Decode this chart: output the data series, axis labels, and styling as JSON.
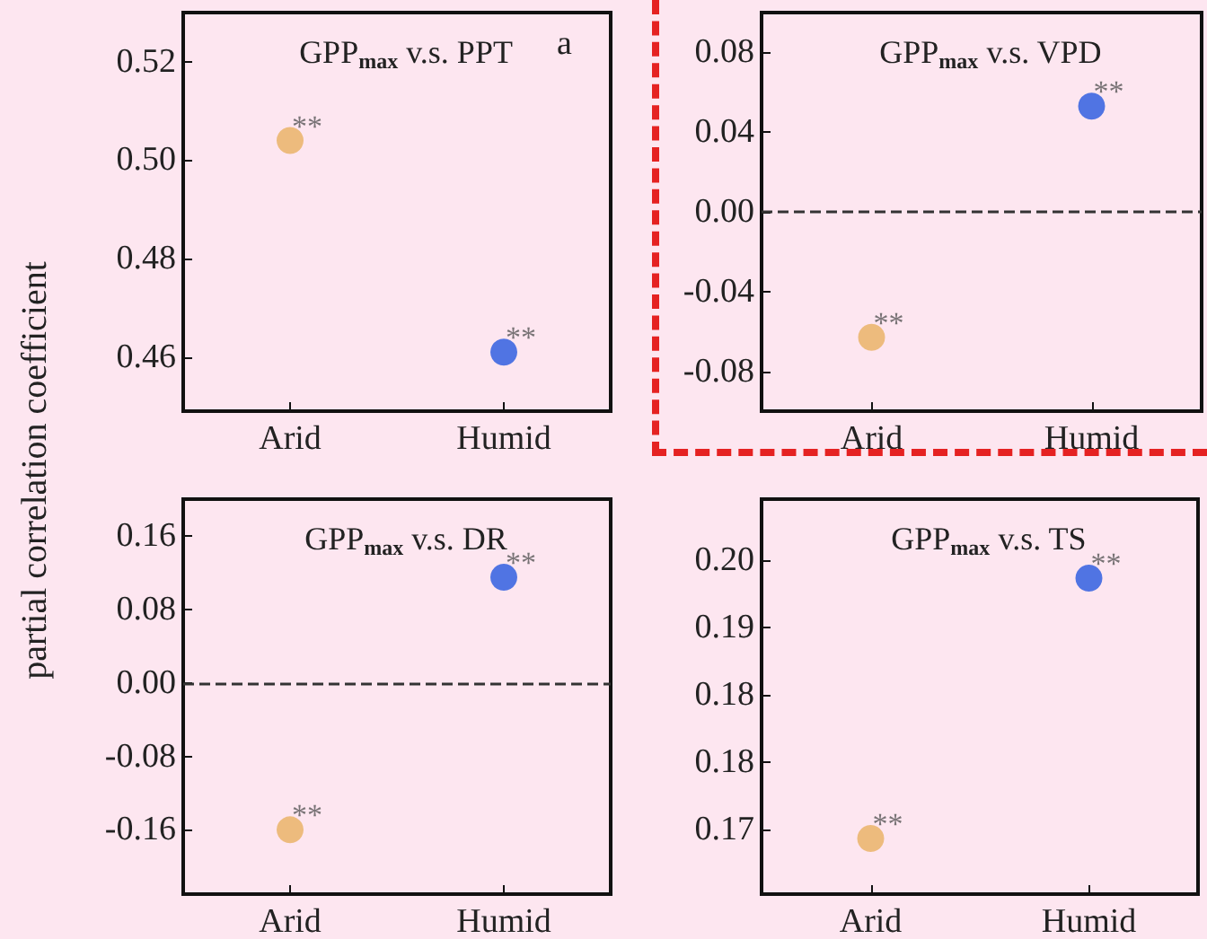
{
  "chart_data": [
    {
      "type": "scatter",
      "title": "GPP$_{max}$ v.s. PPT",
      "ylabel": "partial correlation coefficient",
      "categories": [
        "Arid",
        "Humid"
      ],
      "values": [
        0.504,
        0.461
      ],
      "colors": [
        "#e8b060",
        "#2458e0"
      ],
      "ylim": [
        0.449,
        0.53
      ],
      "yticks": [
        0.46,
        0.48,
        {
          "value": 0.5,
          "label": "0.50"
        },
        0.52
      ],
      "marker": "circle",
      "annotations": [
        "a",
        {
          "text": "**",
          "x": "Arid",
          "y": 0.504
        },
        {
          "text": "**",
          "x": "Humid",
          "y": 0.461
        }
      ]
    },
    {
      "type": "scatter",
      "title": "GPP$_{max}$ v.s. VPD",
      "categories": [
        "Arid",
        "Humid"
      ],
      "values": [
        -0.063,
        0.053
      ],
      "colors": [
        "#e8b060",
        "#2458e0"
      ],
      "ylim": [
        -0.1,
        0.1
      ],
      "yticks": [
        -0.08,
        -0.04,
        {
          "value": 0,
          "label": "0.00"
        },
        0.04,
        0.08
      ],
      "marker": "circle",
      "ref_lines": [
        {
          "axis": "y",
          "value": 0,
          "color": "#333333",
          "line_style": "dashed"
        }
      ],
      "annotations": [
        {
          "text": "**",
          "x": "Arid",
          "y": -0.063
        },
        {
          "text": "**",
          "x": "Humid",
          "y": 0.053
        }
      ]
    },
    {
      "type": "scatter",
      "title": "GPP$_{max}$ v.s. DR",
      "categories": [
        "Arid",
        "Humid"
      ],
      "values": [
        -0.16,
        0.115
      ],
      "colors": [
        "#e8b060",
        "#2458e0"
      ],
      "ylim": [
        -0.23,
        0.2
      ],
      "yticks": [
        -0.16,
        -0.08,
        {
          "value": 0,
          "label": "0.00"
        },
        0.08,
        0.16
      ],
      "marker": "circle",
      "ref_lines": [
        {
          "axis": "y",
          "value": 0,
          "color": "#333333",
          "line_style": "dashed"
        }
      ],
      "annotations": [
        {
          "text": "**",
          "x": "Arid",
          "y": -0.16
        },
        {
          "text": "**",
          "x": "Humid",
          "y": 0.115
        }
      ]
    },
    {
      "type": "scatter",
      "title": "GPP$_{max}$ v.s. TS",
      "categories": [
        "Arid",
        "Humid"
      ],
      "values": [
        0.169,
        0.198
      ],
      "colors": [
        "#e8b060",
        "#2458e0"
      ],
      "ylim": [
        0.1628,
        0.2068
      ],
      "yticks": [
        0.17,
        {
          "value": 0.1775,
          "label": "0.18"
        },
        {
          "value": 0.185,
          "label": "0.18"
        },
        {
          "value": 0.1925,
          "label": "0.19"
        },
        {
          "value": 0.2,
          "label": "0.20"
        }
      ],
      "marker": "circle",
      "annotations": [
        {
          "text": "**",
          "x": "Arid",
          "y": 0.169
        },
        {
          "text": "**",
          "x": "Humid",
          "y": 0.198
        }
      ]
    }
  ]
}
